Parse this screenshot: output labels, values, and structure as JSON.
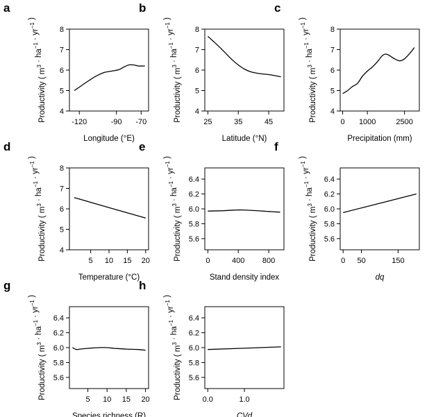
{
  "y_axis_label": {
    "prefix": "Productivity ( m",
    "exp3": "3",
    "ha": " · ha",
    "exp_minus1": "−1",
    "yr": " · yr",
    "close": " )"
  },
  "chart_data": [
    {
      "panel": "a",
      "type": "line",
      "xlabel": "Longitude (°E)",
      "xlabel_italic": false,
      "ylabel": "Productivity ( m3 · ha−1 · yr−1 )",
      "xlim": [
        -128,
        -64
      ],
      "ylim": [
        4,
        8
      ],
      "xticks": [
        -120,
        -90,
        -70
      ],
      "xticklabels": [
        "-120",
        "-90",
        "-70"
      ],
      "yticks": [
        4,
        5,
        6,
        7,
        8
      ],
      "yticklabels": [
        "4",
        "5",
        "6",
        "7",
        "8"
      ],
      "x": [
        -124,
        -118,
        -112,
        -106,
        -100,
        -94,
        -88,
        -84,
        -80,
        -76,
        -72,
        -67
      ],
      "y": [
        5.0,
        5.25,
        5.5,
        5.72,
        5.88,
        5.95,
        6.02,
        6.15,
        6.25,
        6.25,
        6.2,
        6.2
      ]
    },
    {
      "panel": "b",
      "type": "line",
      "xlabel": "Latitude (°N)",
      "xlabel_italic": false,
      "xlim": [
        24,
        50
      ],
      "ylim": [
        4,
        8
      ],
      "xticks": [
        25,
        35,
        45
      ],
      "xticklabels": [
        "25",
        "35",
        "45"
      ],
      "yticks": [
        4,
        5,
        6,
        7,
        8
      ],
      "yticklabels": [
        "4",
        "5",
        "6",
        "7",
        "8"
      ],
      "x": [
        25,
        27,
        29,
        31,
        33,
        35,
        37,
        39,
        41,
        43,
        45,
        47,
        49
      ],
      "y": [
        7.65,
        7.38,
        7.1,
        6.8,
        6.5,
        6.25,
        6.05,
        5.92,
        5.85,
        5.81,
        5.78,
        5.73,
        5.67
      ]
    },
    {
      "panel": "c",
      "type": "line",
      "xlabel": "Precipitation (mm)",
      "xlabel_italic": false,
      "xlim": [
        -100,
        3100
      ],
      "ylim": [
        4,
        8
      ],
      "xticks": [
        0,
        1000,
        2500
      ],
      "xticklabels": [
        "0",
        "1000",
        "2500"
      ],
      "yticks": [
        4,
        5,
        6,
        7,
        8
      ],
      "yticklabels": [
        "4",
        "5",
        "6",
        "7",
        "8"
      ],
      "x": [
        0,
        200,
        400,
        600,
        800,
        1000,
        1200,
        1400,
        1600,
        1750,
        1900,
        2100,
        2300,
        2500,
        2700,
        2900
      ],
      "y": [
        4.85,
        5.0,
        5.2,
        5.35,
        5.7,
        5.95,
        6.15,
        6.4,
        6.7,
        6.78,
        6.7,
        6.55,
        6.45,
        6.55,
        6.8,
        7.1
      ]
    },
    {
      "panel": "d",
      "type": "line",
      "xlabel": "Temperature (°C)",
      "xlabel_italic": false,
      "xlim": [
        -0.8,
        20.8
      ],
      "ylim": [
        4,
        8
      ],
      "xticks": [
        5,
        10,
        15,
        20
      ],
      "xticklabels": [
        "5",
        "10",
        "15",
        "20"
      ],
      "yticks": [
        4,
        5,
        6,
        7,
        8
      ],
      "yticklabels": [
        "4",
        "5",
        "6",
        "7",
        "8"
      ],
      "x": [
        0.5,
        20
      ],
      "y": [
        6.55,
        5.55
      ]
    },
    {
      "panel": "e",
      "type": "line",
      "xlabel": "Stand density index",
      "xlabel_italic": false,
      "xlim": [
        -40,
        1000
      ],
      "ylim": [
        5.45,
        6.55
      ],
      "xticks": [
        0,
        400,
        800
      ],
      "xticklabels": [
        "0",
        "400",
        "800"
      ],
      "yticks": [
        5.6,
        5.8,
        6.0,
        6.2,
        6.4
      ],
      "yticklabels": [
        "5.6",
        "5.8",
        "6.0",
        "6.2",
        "6.4"
      ],
      "x": [
        0,
        200,
        350,
        450,
        600,
        800,
        950
      ],
      "y": [
        5.97,
        5.975,
        5.983,
        5.985,
        5.978,
        5.965,
        5.955
      ]
    },
    {
      "panel": "f",
      "type": "line",
      "xlabel": "dq",
      "xlabel_italic": true,
      "xlim": [
        -8,
        208
      ],
      "ylim": [
        5.45,
        6.55
      ],
      "xticks": [
        0,
        50,
        150
      ],
      "xticklabels": [
        "0",
        "50",
        "150"
      ],
      "yticks": [
        5.6,
        5.8,
        6.0,
        6.2,
        6.4
      ],
      "yticklabels": [
        "5.6",
        "5.8",
        "6.0",
        "6.2",
        "6.4"
      ],
      "x": [
        0,
        200
      ],
      "y": [
        5.95,
        6.2
      ]
    },
    {
      "panel": "g",
      "type": "line",
      "xlabel": "Species richness (R)",
      "xlabel_italic": false,
      "xlim": [
        0.2,
        20.8
      ],
      "ylim": [
        5.45,
        6.55
      ],
      "xticks": [
        5,
        10,
        15,
        20
      ],
      "xticklabels": [
        "5",
        "10",
        "15",
        "20"
      ],
      "yticks": [
        5.6,
        5.8,
        6.0,
        6.2,
        6.4
      ],
      "yticklabels": [
        "5.6",
        "5.8",
        "6.0",
        "6.2",
        "6.4"
      ],
      "x": [
        1,
        2,
        3,
        5,
        8,
        10,
        12,
        15,
        18,
        20
      ],
      "y": [
        6.0,
        5.975,
        5.98,
        5.99,
        6.0,
        6.0,
        5.99,
        5.98,
        5.975,
        5.965
      ]
    },
    {
      "panel": "h",
      "type": "line",
      "xlabel": "CVd",
      "xlabel_italic": true,
      "xlim": [
        -0.08,
        2.08
      ],
      "ylim": [
        5.45,
        6.55
      ],
      "xticks": [
        0.0,
        1.0
      ],
      "xticklabels": [
        "0.0",
        "1.0"
      ],
      "yticks": [
        5.6,
        5.8,
        6.0,
        6.2,
        6.4
      ],
      "yticklabels": [
        "5.6",
        "5.8",
        "6.0",
        "6.2",
        "6.4"
      ],
      "x": [
        0,
        2
      ],
      "y": [
        5.975,
        6.01
      ]
    }
  ]
}
